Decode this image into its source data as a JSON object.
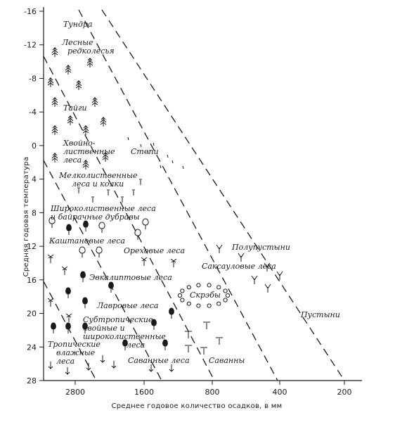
{
  "chart_data": {
    "type": "diagram",
    "xlabel": "Среднее годовое количество осадков, в мм",
    "ylabel": "Средняя годовая температура",
    "x_axis": {
      "reversed": true,
      "range": [
        3000,
        150
      ],
      "ticks": [
        2800,
        1600,
        800,
        400,
        200
      ]
    },
    "y_axis": {
      "reversed": true,
      "range": [
        -16,
        28
      ],
      "ticks": [
        -16,
        -12,
        -8,
        -4,
        0,
        4,
        8,
        12,
        16,
        20,
        24,
        28
      ],
      "tick_labels": [
        "-16",
        "-12",
        "-8",
        "-4",
        "0",
        "4",
        "8",
        "12",
        "16",
        "20",
        "24",
        "28"
      ]
    },
    "zones": [
      "Тундра",
      "Лесные редколесья",
      "Тайги",
      "Хвойно-лиственные леса",
      "Степи",
      "Мелколиственные леса и колки",
      "Широколиственные леса и байрачные дубравы",
      "Каштановые леса",
      "Ореховые леса",
      "Полупустыни",
      "Саксауловые леса",
      "Эвкалиптовые леса",
      "Скрэбы",
      "Лавровые леса",
      "Пустыни",
      "Субтропические, хвойные и широколиственные леса",
      "Тропические влажные леса",
      "Саванные леса",
      "Саванны"
    ]
  }
}
